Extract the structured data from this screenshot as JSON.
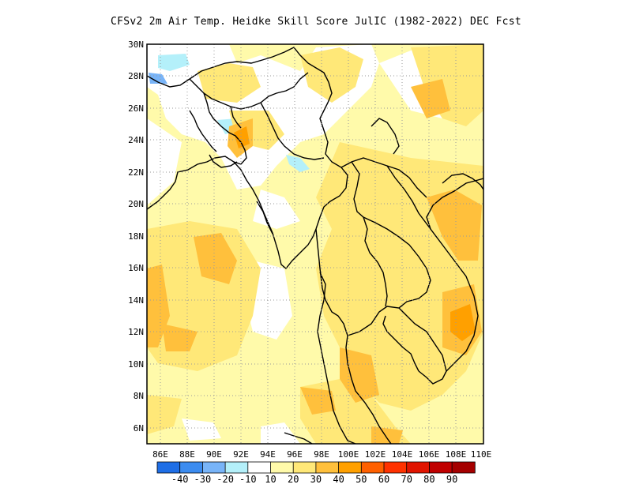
{
  "title": "CFSv2  2m Air Temp. Heidke Skill Score JulIC (1982-2022) DEC Fcst",
  "map": {
    "lon_labels": [
      "86E",
      "88E",
      "90E",
      "92E",
      "94E",
      "96E",
      "98E",
      "100E",
      "102E",
      "104E",
      "106E",
      "108E",
      "110E"
    ],
    "lat_labels": [
      "30N",
      "28N",
      "26N",
      "24N",
      "22N",
      "20N",
      "18N",
      "16N",
      "14N",
      "12N",
      "10N",
      "8N",
      "6N"
    ],
    "lon_range": [
      85,
      110
    ],
    "lat_range": [
      5,
      30
    ],
    "grid": "dotted"
  },
  "colorbar": {
    "colors": [
      "#1e6ee6",
      "#3c8cf0",
      "#78b4f8",
      "#b4f0fa",
      "#ffffff",
      "#fffaaa",
      "#ffe878",
      "#ffc03c",
      "#ffa000",
      "#ff6000",
      "#ff3200",
      "#e11400",
      "#c00000",
      "#a50000"
    ],
    "labels": [
      "-40",
      "-30",
      "-20",
      "-10",
      "10",
      "20",
      "30",
      "40",
      "50",
      "60",
      "70",
      "80",
      "90"
    ]
  }
}
